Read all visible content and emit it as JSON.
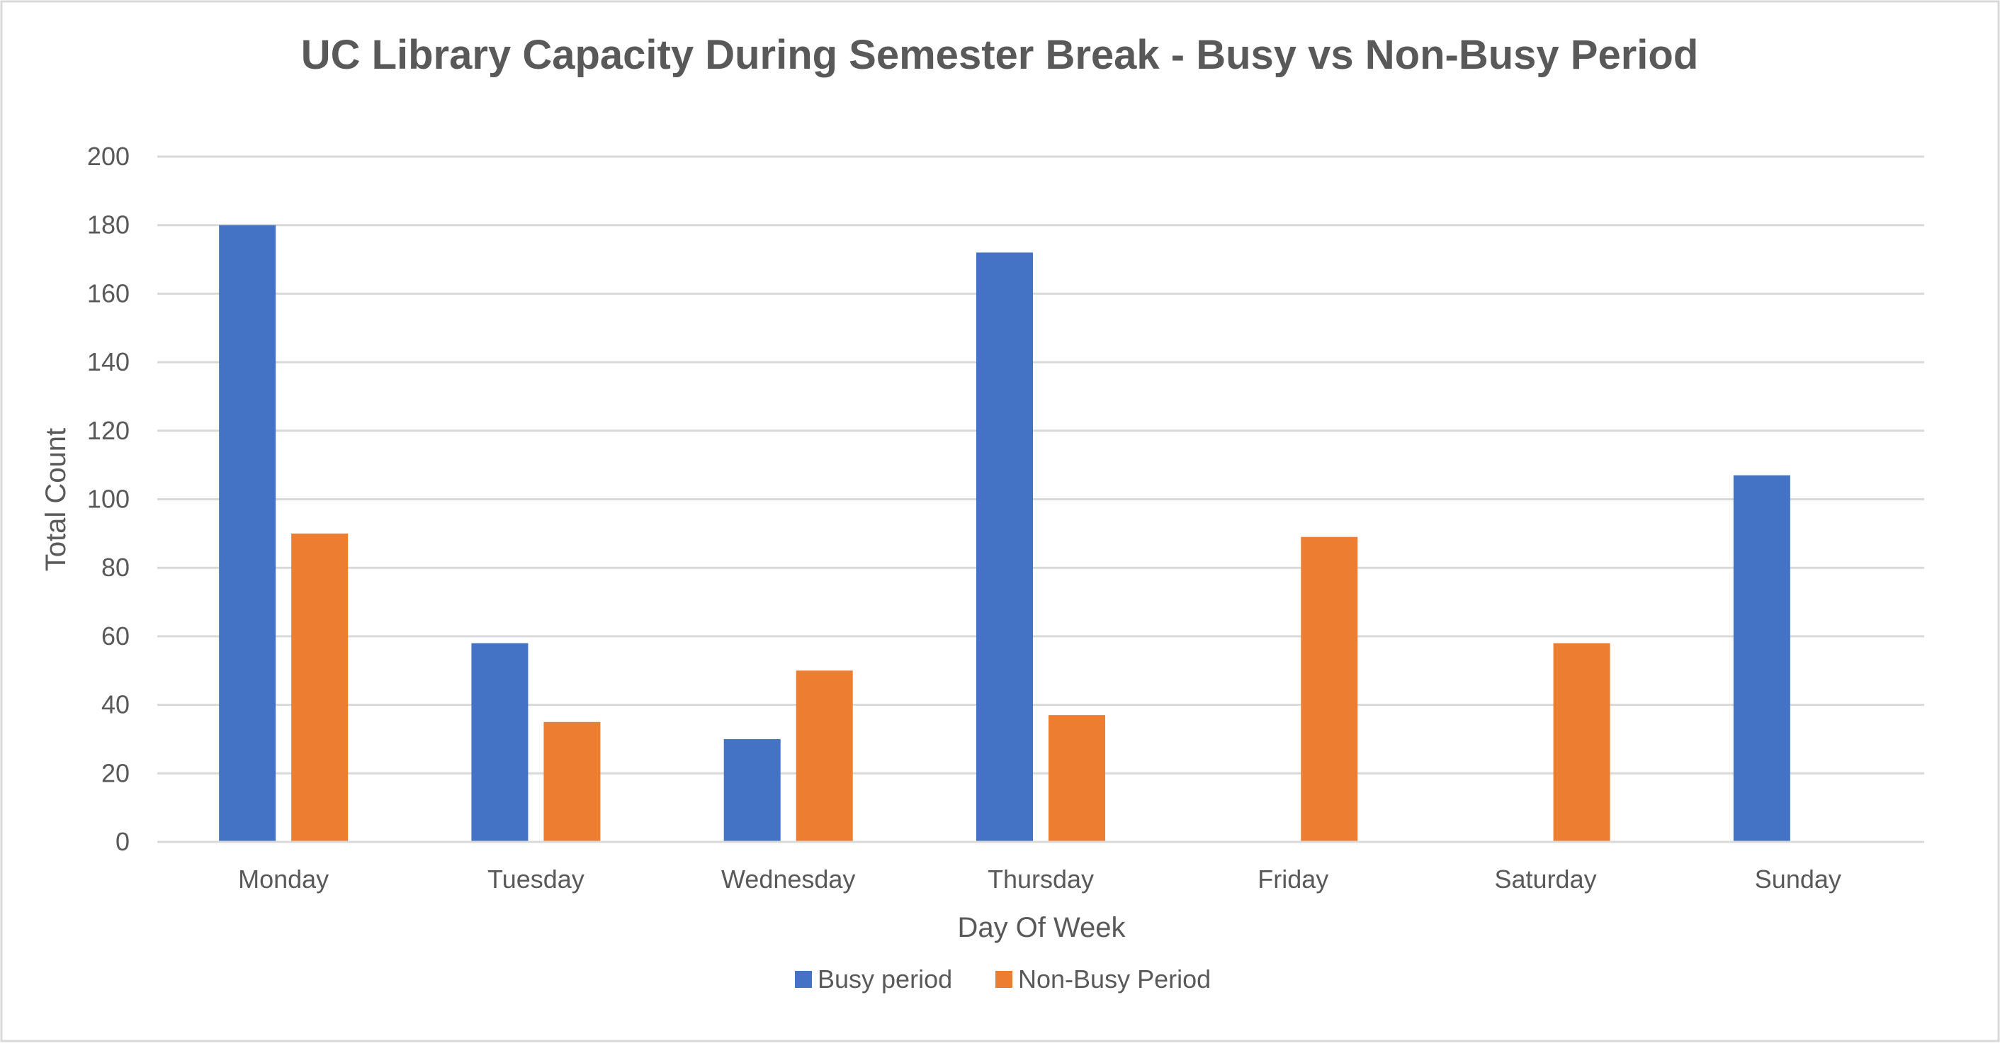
{
  "chart_data": {
    "type": "bar",
    "title": "UC Library Capacity During Semester Break - Busy vs Non-Busy Period",
    "xlabel": "Day Of Week",
    "ylabel": "Total Count",
    "ylim": [
      0,
      200
    ],
    "yticks": [
      0,
      20,
      40,
      60,
      80,
      100,
      120,
      140,
      160,
      180,
      200
    ],
    "grid": true,
    "legend_position": "bottom",
    "categories": [
      "Monday",
      "Tuesday",
      "Wednesday",
      "Thursday",
      "Friday",
      "Saturday",
      "Sunday"
    ],
    "series": [
      {
        "name": "Busy period",
        "color": "#4472C4",
        "values": [
          180,
          58,
          30,
          172,
          null,
          null,
          107
        ]
      },
      {
        "name": "Non-Busy Period",
        "color": "#ED7D31",
        "values": [
          90,
          35,
          50,
          37,
          89,
          58,
          null
        ]
      }
    ]
  }
}
